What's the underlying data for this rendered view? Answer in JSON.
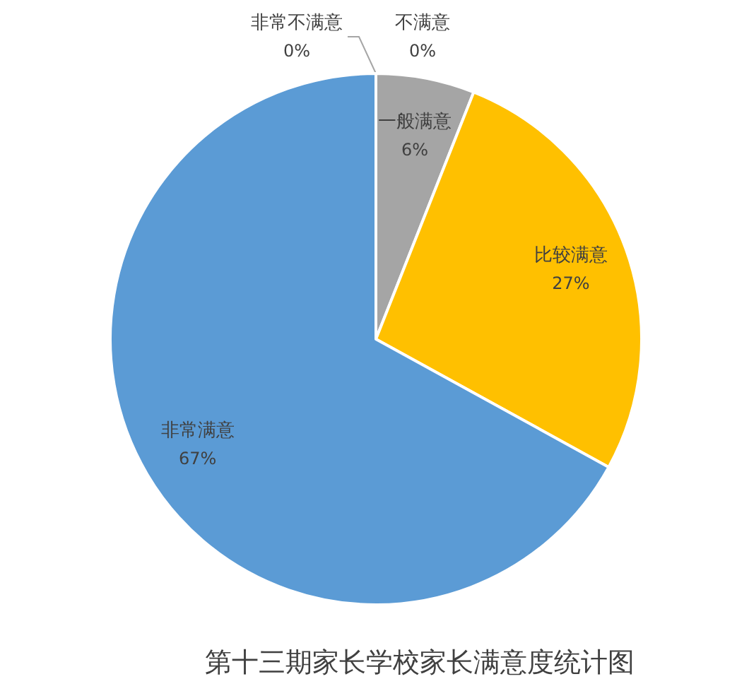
{
  "chart_data": {
    "type": "pie",
    "title": "第十三期家长学校家长满意度统计图",
    "categories": [
      "非常不满意",
      "不满意",
      "一般满意",
      "比较满意",
      "非常满意"
    ],
    "values": [
      0,
      0,
      6,
      27,
      67
    ],
    "value_labels": [
      "0%",
      "0%",
      "6%",
      "27%",
      "67%"
    ],
    "colors": [
      "#5b9bd5",
      "#ed7d31",
      "#a5a5a5",
      "#ffc000",
      "#5b9bd5"
    ]
  }
}
